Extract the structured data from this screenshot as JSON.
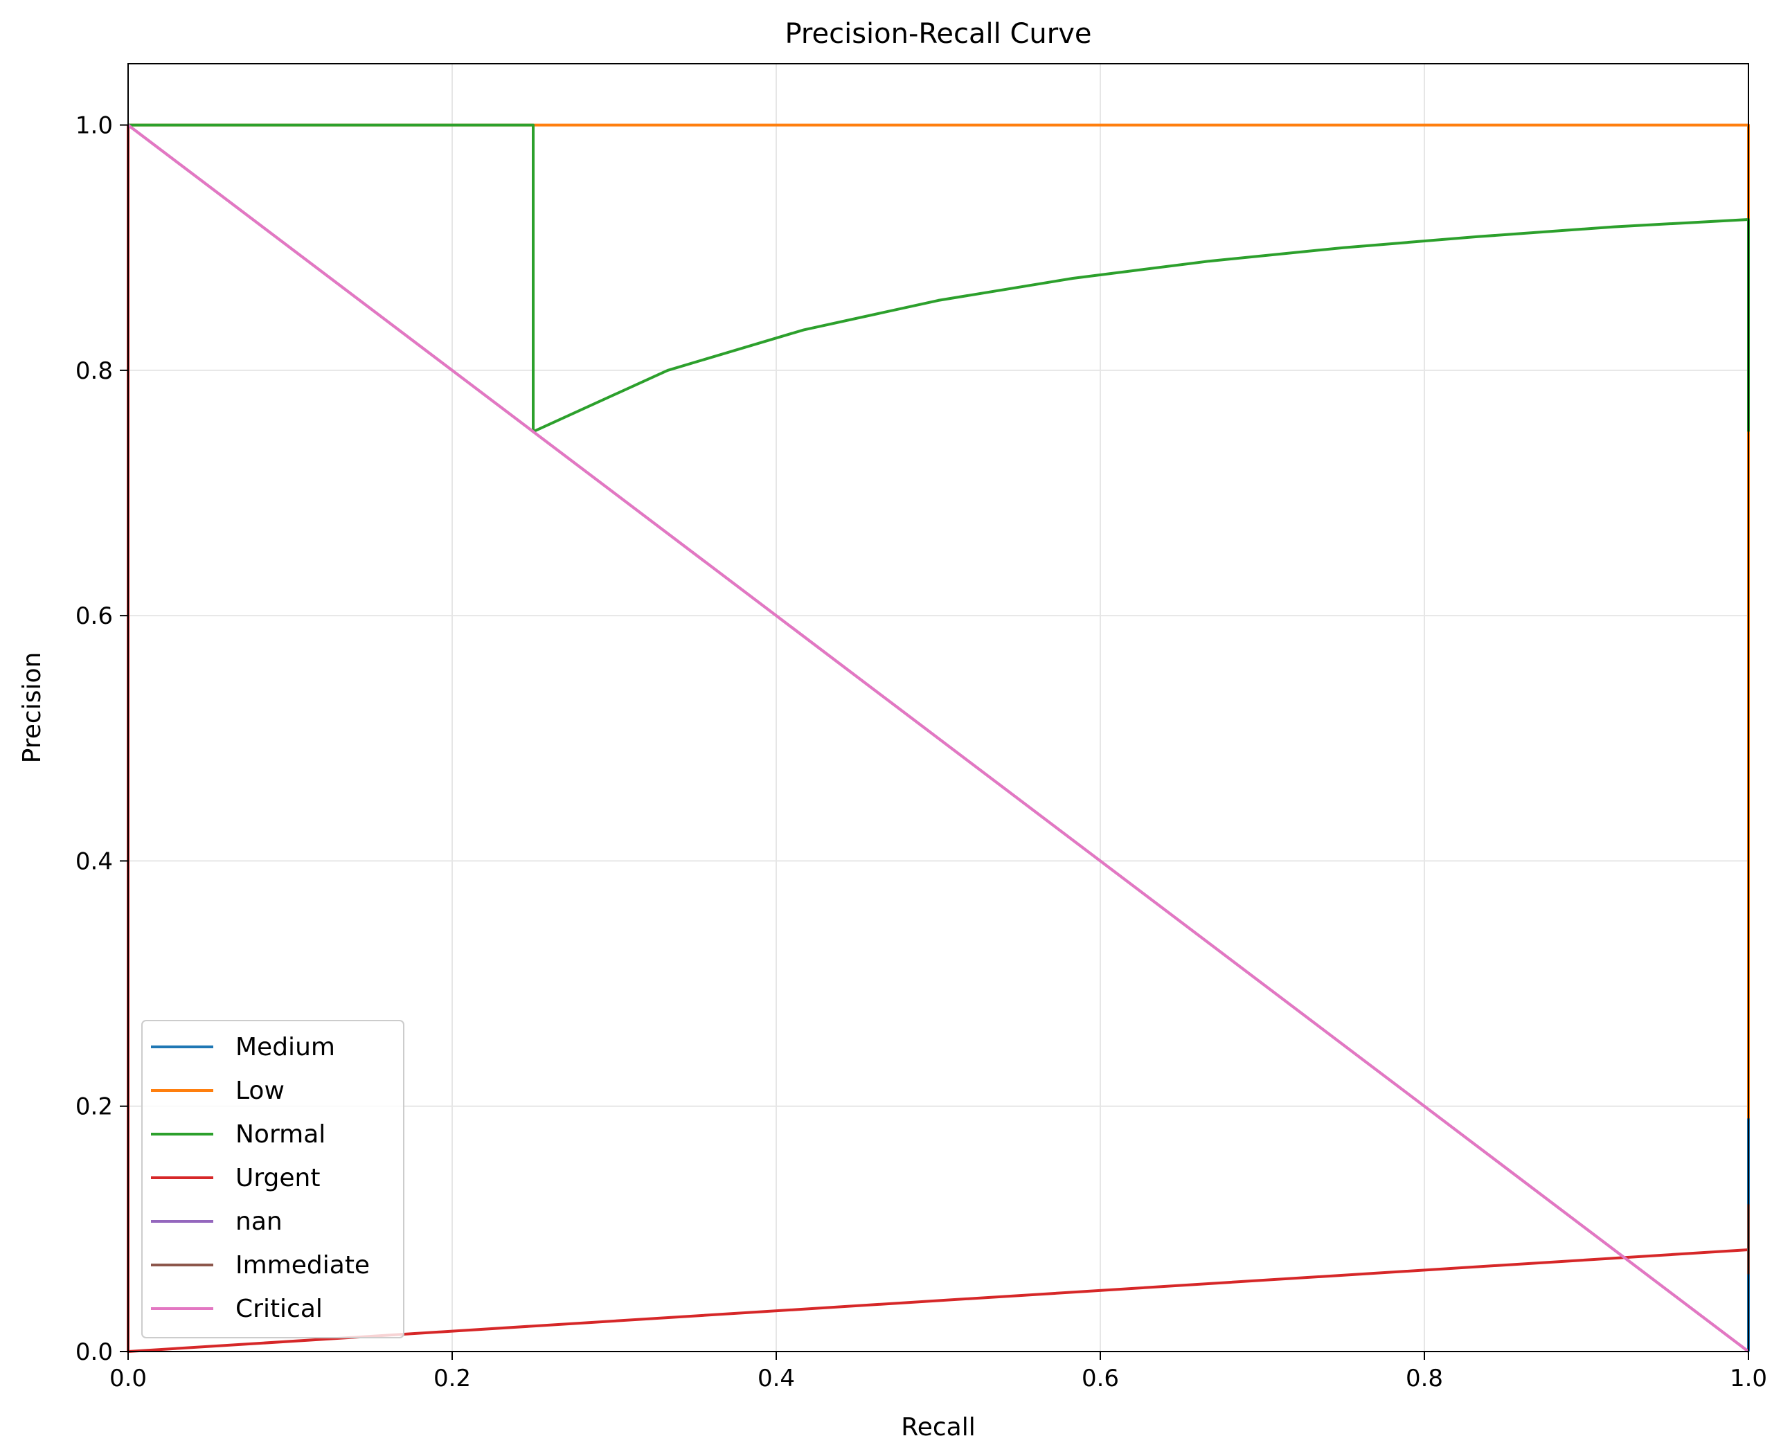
{
  "chart_data": {
    "type": "line",
    "title": "Precision-Recall Curve",
    "xlabel": "Recall",
    "ylabel": "Precision",
    "xlim": [
      0.0,
      1.0
    ],
    "ylim": [
      0.0,
      1.05
    ],
    "xticks": [
      "0.0",
      "0.2",
      "0.4",
      "0.6",
      "0.8",
      "1.0"
    ],
    "yticks": [
      "0.0",
      "0.2",
      "0.4",
      "0.6",
      "0.8",
      "1.0"
    ],
    "grid": true,
    "legend_position": "lower-left",
    "series": [
      {
        "name": "Medium",
        "color": "#1f77b4",
        "points": [
          [
            1.0,
            1.0
          ],
          [
            1.0,
            0.0
          ]
        ]
      },
      {
        "name": "Low",
        "color": "#ff7f0e",
        "points": [
          [
            0.0,
            1.0
          ],
          [
            1.0,
            1.0
          ],
          [
            1.0,
            0.19
          ]
        ]
      },
      {
        "name": "Normal",
        "color": "#2ca02c",
        "points": [
          [
            0.0,
            1.0
          ],
          [
            0.25,
            1.0
          ],
          [
            0.25,
            0.75
          ],
          [
            0.333,
            0.8
          ],
          [
            0.417,
            0.833
          ],
          [
            0.5,
            0.857
          ],
          [
            0.583,
            0.875
          ],
          [
            0.667,
            0.889
          ],
          [
            0.75,
            0.9
          ],
          [
            0.833,
            0.909
          ],
          [
            0.917,
            0.917
          ],
          [
            1.0,
            0.923
          ],
          [
            1.0,
            0.75
          ]
        ]
      },
      {
        "name": "Urgent",
        "color": "#d62728",
        "points": [
          [
            0.0,
            1.0
          ],
          [
            0.0,
            0.0
          ],
          [
            1.0,
            0.083
          ]
        ]
      },
      {
        "name": "nan",
        "color": "#9467bd",
        "points": [
          [
            0.0,
            1.0
          ],
          [
            1.0,
            0.0
          ]
        ]
      },
      {
        "name": "Immediate",
        "color": "#8c564b",
        "points": [
          [
            1.0,
            0.12
          ],
          [
            1.0,
            0.063
          ]
        ]
      },
      {
        "name": "Critical",
        "color": "#e377c2",
        "points": [
          [
            0.0,
            1.0
          ],
          [
            1.0,
            0.0
          ]
        ]
      }
    ]
  }
}
